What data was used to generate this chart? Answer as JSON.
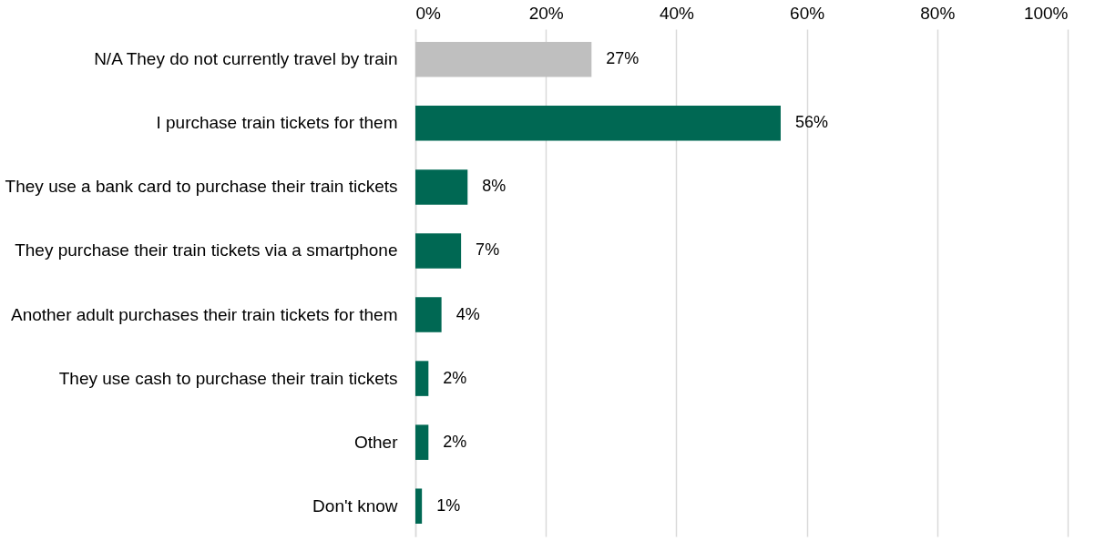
{
  "chart_data": {
    "type": "bar",
    "orientation": "horizontal",
    "categories": [
      "N/A They do not currently travel by train",
      "I purchase train tickets for them",
      "They use a bank card to purchase their train tickets",
      "They purchase their train tickets via a smartphone",
      "Another adult purchases their train tickets for them",
      "They use cash to purchase their train tickets",
      "Other",
      "Don't know"
    ],
    "values": [
      27,
      56,
      8,
      7,
      4,
      2,
      2,
      1
    ],
    "colors": [
      "#bfbfbf",
      "#006853",
      "#006853",
      "#006853",
      "#006853",
      "#006853",
      "#006853",
      "#006853"
    ],
    "value_labels": [
      "27%",
      "56%",
      "8%",
      "7%",
      "4%",
      "2%",
      "2%",
      "1%"
    ],
    "xlim": [
      0,
      100
    ],
    "xticks": [
      {
        "value": 0,
        "label": "0%"
      },
      {
        "value": 20,
        "label": "20%"
      },
      {
        "value": 40,
        "label": "40%"
      },
      {
        "value": 60,
        "label": "60%"
      },
      {
        "value": 80,
        "label": "80%"
      },
      {
        "value": 100,
        "label": "100%"
      }
    ],
    "grid": "x"
  }
}
